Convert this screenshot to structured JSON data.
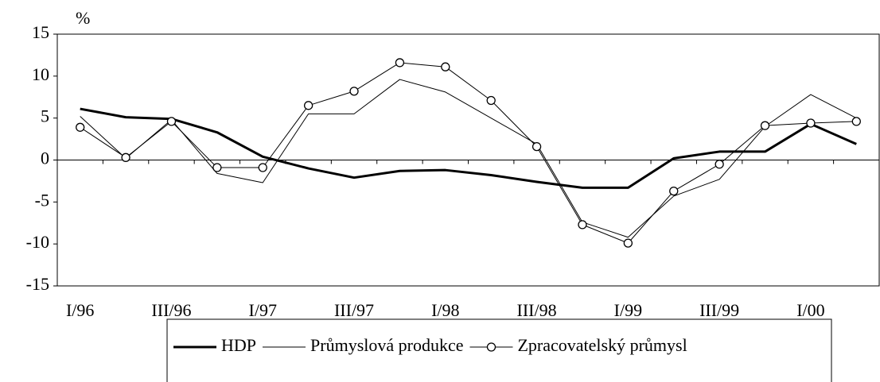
{
  "chart_data": {
    "type": "line",
    "y_unit_label": "%",
    "categories": [
      "I/96",
      null,
      "III/96",
      null,
      "I/97",
      null,
      "III/97",
      null,
      "I/98",
      null,
      "III/98",
      null,
      "I/99",
      null,
      "III/99",
      null,
      "I/00",
      null
    ],
    "series": [
      {
        "name": "HDP",
        "color": "#000000",
        "line_width": 3,
        "values": [
          6.1,
          5.1,
          4.9,
          3.3,
          0.4,
          -1.0,
          -2.1,
          -1.3,
          -1.2,
          -1.8,
          -2.6,
          -3.3,
          -3.3,
          0.2,
          1.0,
          1.0,
          4.3,
          1.9
        ]
      },
      {
        "name": "Průmyslová produkce",
        "color": "#000000",
        "line_width": 1,
        "values": [
          5.2,
          0.2,
          4.8,
          -1.6,
          -2.7,
          5.5,
          5.5,
          9.6,
          8.1,
          5.0,
          1.9,
          -7.4,
          -9.2,
          -4.3,
          -2.3,
          4.0,
          7.8,
          5.0
        ]
      },
      {
        "name": "Zpracovatelský průmysl",
        "color": "#000000",
        "line_width": 1,
        "marker": "circle",
        "values": [
          3.9,
          0.3,
          4.6,
          -0.9,
          -0.9,
          6.5,
          8.2,
          11.6,
          11.1,
          7.1,
          1.6,
          -7.7,
          -9.9,
          -3.7,
          -0.5,
          4.1,
          4.4,
          4.6
        ]
      }
    ],
    "ylim": [
      -15,
      15
    ],
    "yticks": [
      -15,
      -10,
      -5,
      0,
      5,
      10,
      15
    ],
    "grid": false,
    "legend": "bottom"
  }
}
